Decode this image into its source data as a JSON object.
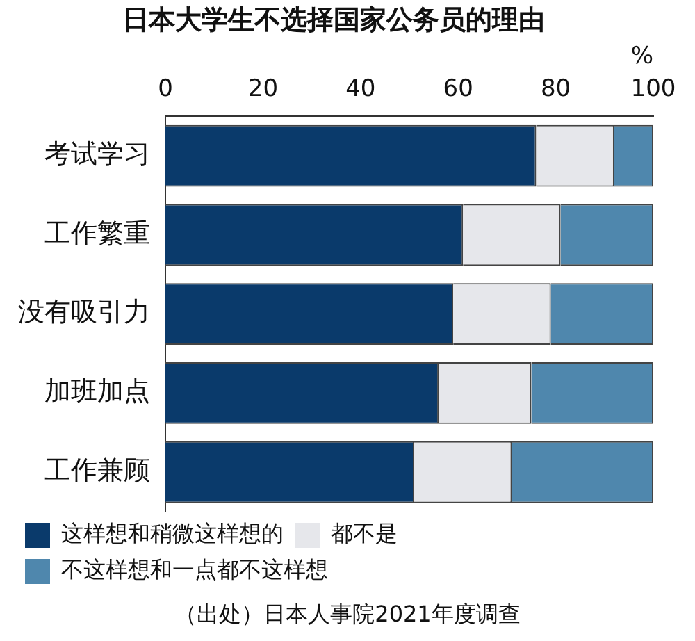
{
  "chart_data": {
    "type": "bar",
    "orientation": "horizontal",
    "stacked": true,
    "title": "日本大学生不选择国家公务员的理由",
    "xlabel": "%",
    "categories": [
      "考试学习",
      "工作繁重",
      "没有吸引力",
      "加班加点",
      "工作兼顾"
    ],
    "series": [
      {
        "name": "这样想和稍微这样想的",
        "color": "#0a3a6b",
        "values": [
          76,
          61,
          59,
          56,
          51
        ]
      },
      {
        "name": "都不是",
        "color": "#e6e7eb",
        "values": [
          16,
          20,
          20,
          19,
          20
        ]
      },
      {
        "name": "不这样想和一点都不这样想",
        "color": "#4f87ad",
        "values": [
          8,
          19,
          21,
          25,
          29
        ]
      }
    ],
    "xlim": [
      0,
      100
    ],
    "xticks": [
      0,
      20,
      40,
      60,
      80,
      100
    ],
    "grid": false,
    "legend": "bottom",
    "annotations": [
      "（出处）日本人事院2021年度调查"
    ]
  }
}
